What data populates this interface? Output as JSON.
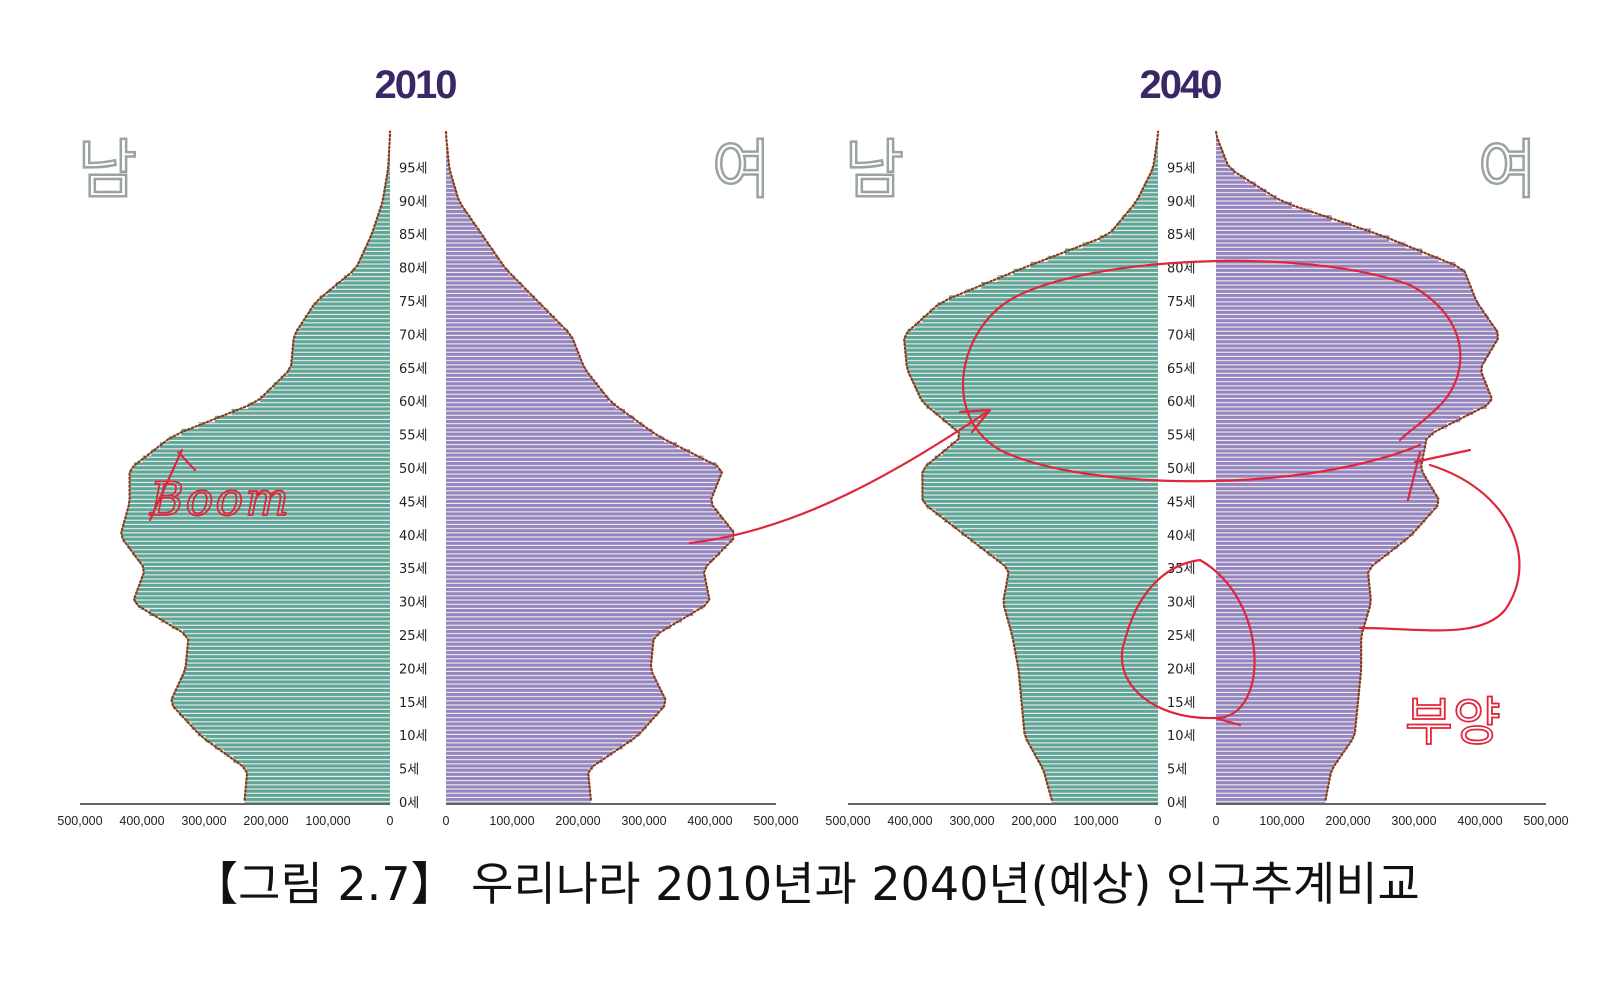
{
  "caption": "【그림 2.7】 우리나라 2010년과 2040년(예상) 인구추계비교",
  "annotations": {
    "boom": "Boom",
    "burden": "부양"
  },
  "colors": {
    "male": "#5ea69a",
    "female": "#9485c2",
    "stripe": "#f2efe6",
    "edge": "#8a3b1c",
    "annotation": "#e0263a"
  },
  "chart_data": [
    {
      "type": "bar",
      "title": "2010",
      "male_label": "남",
      "female_label": "여",
      "age_labels": [
        "95세",
        "90세",
        "85세",
        "80세",
        "75세",
        "70세",
        "65세",
        "60세",
        "55세",
        "50세",
        "45세",
        "40세",
        "35세",
        "30세",
        "25세",
        "20세",
        "15세",
        "10세",
        "5세",
        "0세"
      ],
      "male_ticks": [
        "500,000",
        "400,000",
        "300,000",
        "200,000",
        "100,000",
        "0"
      ],
      "female_ticks": [
        "0",
        "100,000",
        "200,000",
        "300,000",
        "400,000",
        "500,000"
      ],
      "xlim": [
        0,
        500000
      ],
      "ages": [
        0,
        5,
        10,
        15,
        20,
        25,
        30,
        35,
        40,
        45,
        50,
        55,
        60,
        65,
        70,
        75,
        80,
        85,
        90,
        95,
        100
      ],
      "male": [
        235000,
        230000,
        305000,
        355000,
        330000,
        325000,
        415000,
        395000,
        435000,
        420000,
        420000,
        350000,
        215000,
        160000,
        155000,
        120000,
        55000,
        30000,
        12000,
        3000,
        0
      ],
      "female": [
        220000,
        215000,
        290000,
        335000,
        310000,
        315000,
        400000,
        390000,
        440000,
        400000,
        420000,
        320000,
        250000,
        210000,
        190000,
        140000,
        90000,
        55000,
        20000,
        5000,
        0
      ]
    },
    {
      "type": "bar",
      "title": "2040",
      "male_label": "남",
      "female_label": "여",
      "age_labels": [
        "95세",
        "90세",
        "85세",
        "80세",
        "75세",
        "70세",
        "65세",
        "60세",
        "55세",
        "50세",
        "45세",
        "40세",
        "35세",
        "30세",
        "25세",
        "20세",
        "15세",
        "10세",
        "5세",
        "0세"
      ],
      "male_ticks": [
        "500,000",
        "400,000",
        "300,000",
        "200,000",
        "100,000",
        "0"
      ],
      "female_ticks": [
        "0",
        "100,000",
        "200,000",
        "300,000",
        "400,000",
        "500,000"
      ],
      "xlim": [
        0,
        500000
      ],
      "ages": [
        0,
        5,
        10,
        15,
        20,
        25,
        30,
        35,
        40,
        45,
        50,
        55,
        60,
        65,
        70,
        75,
        80,
        85,
        90,
        95,
        100
      ],
      "male": [
        170000,
        185000,
        215000,
        220000,
        225000,
        235000,
        250000,
        240000,
        310000,
        380000,
        380000,
        315000,
        380000,
        405000,
        410000,
        350000,
        220000,
        80000,
        35000,
        8000,
        0
      ],
      "female": [
        165000,
        175000,
        210000,
        215000,
        220000,
        220000,
        235000,
        230000,
        295000,
        340000,
        310000,
        320000,
        420000,
        400000,
        430000,
        395000,
        375000,
        250000,
        100000,
        20000,
        0
      ]
    }
  ]
}
